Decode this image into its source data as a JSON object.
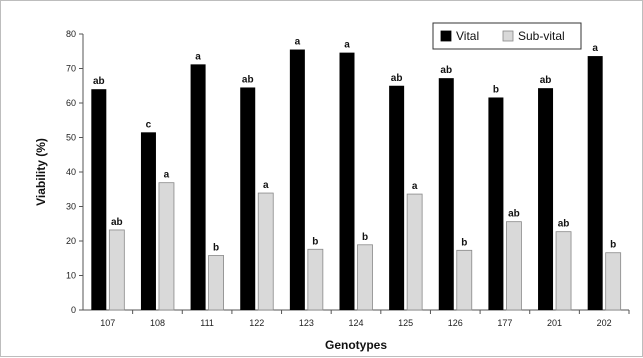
{
  "chart_data": {
    "type": "bar",
    "xlabel": "Genotypes",
    "ylabel": "Viability (%)",
    "ylim": [
      0,
      80
    ],
    "yticks": [
      0,
      10,
      20,
      30,
      40,
      50,
      60,
      70,
      80
    ],
    "grid": false,
    "legend_position": "top-right",
    "categories": [
      "107",
      "108",
      "111",
      "122",
      "123",
      "124",
      "125",
      "126",
      "177",
      "201",
      "202"
    ],
    "series": [
      {
        "name": "Vital",
        "color": "#000000",
        "values": [
          64.0,
          51.5,
          71.2,
          64.5,
          75.5,
          74.6,
          65.0,
          67.2,
          61.6,
          64.3,
          73.6
        ],
        "labels": [
          "ab",
          "c",
          "a",
          "ab",
          "a",
          "a",
          "ab",
          "ab",
          "b",
          "ab",
          "a"
        ]
      },
      {
        "name": "Sub-vital",
        "color": "#d9d9d9",
        "values": [
          23.2,
          36.9,
          15.8,
          33.9,
          17.6,
          18.9,
          33.6,
          17.3,
          25.6,
          22.7,
          16.6
        ],
        "labels": [
          "ab",
          "a",
          "b",
          "a",
          "b",
          "b",
          "a",
          "b",
          "ab",
          "ab",
          "b"
        ]
      }
    ]
  }
}
